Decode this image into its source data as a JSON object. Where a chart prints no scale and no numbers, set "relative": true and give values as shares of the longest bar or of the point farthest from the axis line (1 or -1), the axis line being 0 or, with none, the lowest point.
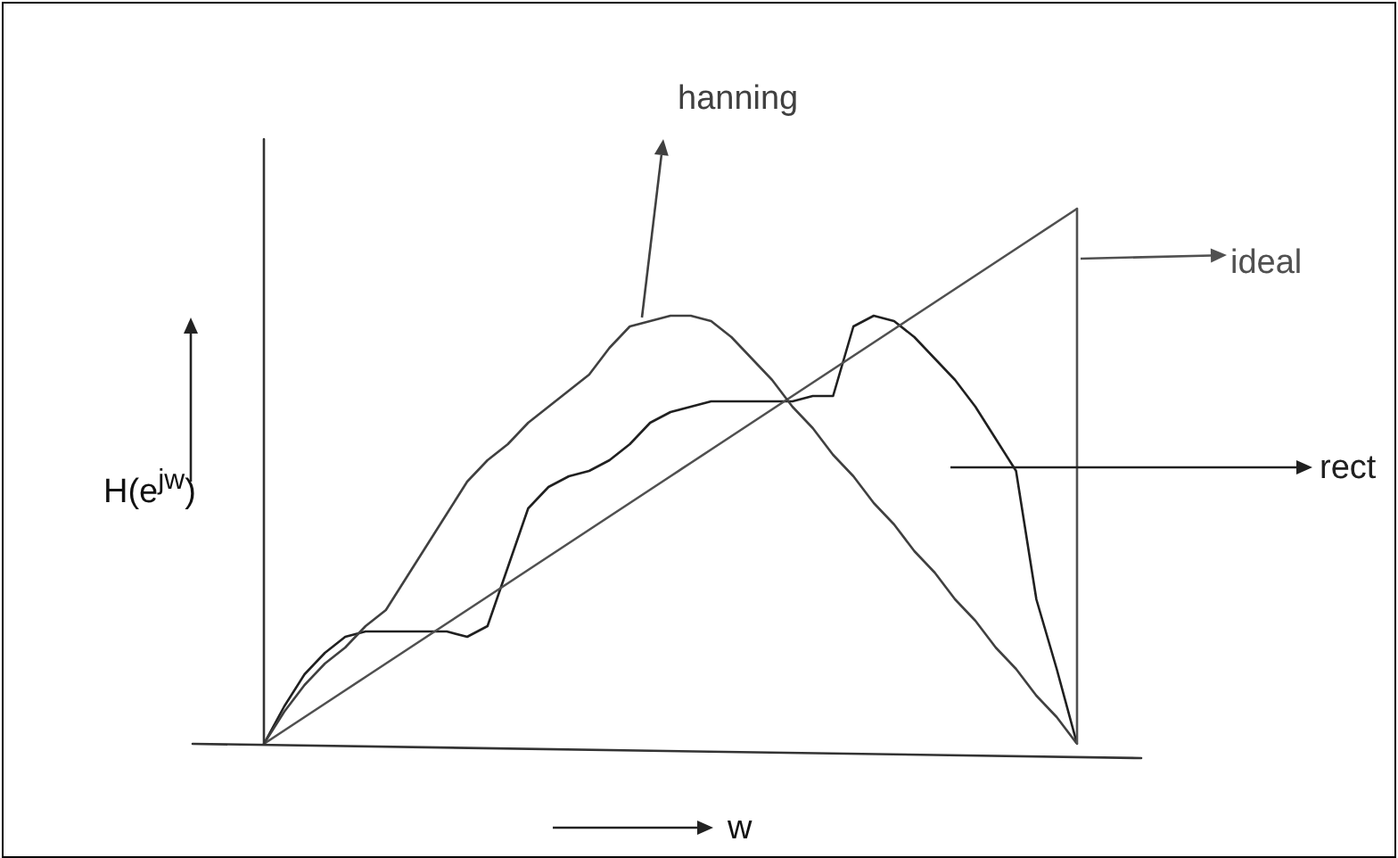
{
  "chart_data": {
    "type": "line",
    "relative": true,
    "xlabel": "w",
    "ylabel": "H(e$^{jw}$)",
    "legend": "right",
    "marker": "none",
    "line_style": "solid",
    "categories": [
      null,
      null,
      null,
      null,
      null,
      null,
      null,
      null,
      null,
      null,
      null,
      null,
      null,
      null,
      null,
      null,
      null,
      null,
      null,
      null,
      null,
      null,
      null,
      null,
      null,
      null,
      null,
      null,
      null,
      null,
      null,
      null,
      null,
      null,
      null,
      null,
      null,
      null,
      null,
      null,
      null
    ],
    "series": [
      {
        "name": "hanning",
        "color": "#404040",
        "values": [
          0,
          0.06,
          0.11,
          0.15,
          0.18,
          0.22,
          0.25,
          0.31,
          0.37,
          0.43,
          0.49,
          0.53,
          0.56,
          0.6,
          0.63,
          0.66,
          0.69,
          0.74,
          0.78,
          0.79,
          0.8,
          0.8,
          0.79,
          0.76,
          0.72,
          0.68,
          0.63,
          0.59,
          0.54,
          0.5,
          0.45,
          0.41,
          0.36,
          0.32,
          0.27,
          0.23,
          0.18,
          0.14,
          0.09,
          0.05,
          0
        ]
      },
      {
        "name": "ideal",
        "color": "#505050",
        "values": [
          0,
          0.025,
          0.05,
          0.075,
          0.1,
          0.125,
          0.15,
          0.175,
          0.2,
          0.225,
          0.25,
          0.275,
          0.3,
          0.325,
          0.35,
          0.375,
          0.4,
          0.425,
          0.45,
          0.475,
          0.5,
          0.525,
          0.55,
          0.575,
          0.6,
          0.625,
          0.65,
          0.675,
          0.7,
          0.725,
          0.75,
          0.775,
          0.8,
          0.825,
          0.85,
          0.875,
          0.9,
          0.925,
          0.95,
          0.975,
          1
        ]
      },
      {
        "name": "rect",
        "color": "#202020",
        "values": [
          0,
          0.07,
          0.13,
          0.17,
          0.2,
          0.21,
          0.21,
          0.21,
          0.21,
          0.21,
          0.2,
          0.22,
          0.33,
          0.44,
          0.48,
          0.5,
          0.51,
          0.53,
          0.56,
          0.6,
          0.62,
          0.63,
          0.64,
          0.64,
          0.64,
          0.64,
          0.64,
          0.65,
          0.65,
          0.78,
          0.8,
          0.79,
          0.76,
          0.72,
          0.68,
          0.63,
          0.57,
          0.51,
          0.27,
          0.14,
          0
        ]
      }
    ]
  }
}
